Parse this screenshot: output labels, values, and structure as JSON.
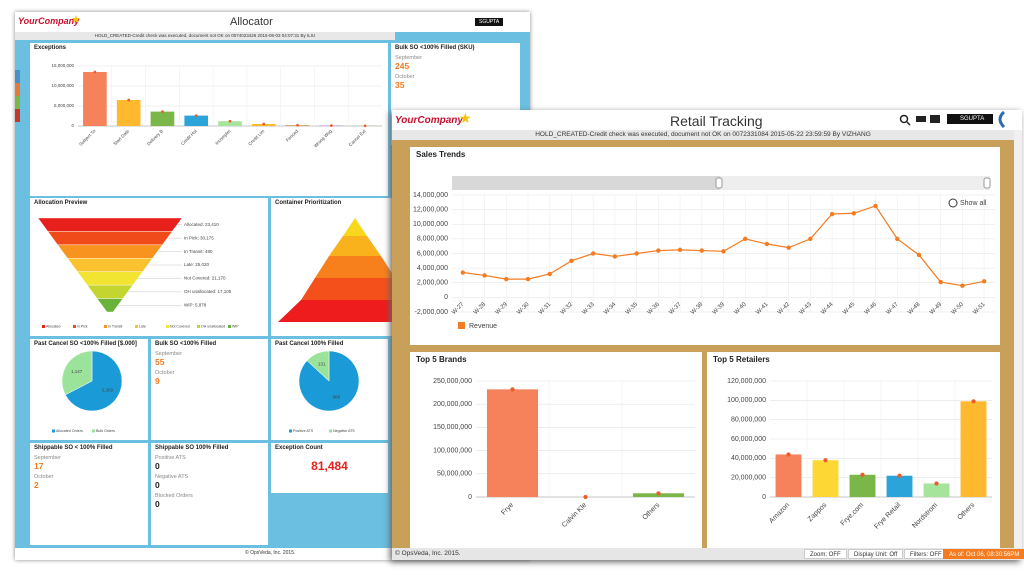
{
  "back": {
    "logo": "YourCompany",
    "title": "Allocator",
    "user": "SGUPTA",
    "message": "HOLD_CREATED-Credit check was executed, document not OK on 0074023426 2015-06-03 04:07:31 By ILIU",
    "exceptions": {
      "title": "Exceptions",
      "categories": [
        "Subject To",
        "Start Date",
        "Delivery B",
        "Credit Hol",
        "Incomplet",
        "Credit Lim",
        "Fenced",
        "Wrong Wsg",
        "Cancel Ext"
      ],
      "values": [
        13500000,
        6500000,
        3600000,
        2600000,
        1200000,
        500000,
        200000,
        100000,
        50000
      ],
      "colors": [
        "#f5825a",
        "#ffb92e",
        "#7ab648",
        "#2ba4d9",
        "#a6e39b",
        "#ffb92e",
        "#c89b5a",
        "#9b7bd1",
        "#7ab648"
      ],
      "ylim": [
        0,
        15000000
      ],
      "yticks": [
        0,
        {
          "value": 5000000,
          "label": "5,000,000"
        },
        {
          "value": 10000000,
          "label": "10,000,000"
        },
        {
          "value": 15000000,
          "label": "15,000,000"
        }
      ]
    },
    "bulk_sku": {
      "title": "Bulk SO <100% Filled (SKU)",
      "rows": [
        {
          "label": "September",
          "value": 245
        },
        {
          "label": "October",
          "value": 35
        }
      ]
    },
    "allocation": {
      "title": "Allocation Preview",
      "segments": [
        {
          "name": "Allocated",
          "value": 23410,
          "label": "Allocated: 23,410",
          "color": "#e8201c"
        },
        {
          "name": "In Pick",
          "value": 30175,
          "label": "In Pick: 30,175",
          "color": "#f04a1a"
        },
        {
          "name": "In Transit",
          "value": 480,
          "label": "In Transit: 480",
          "color": "#f7931e"
        },
        {
          "name": "Late",
          "value": 25020,
          "label": "Late: 25,020",
          "color": "#f9c22e"
        },
        {
          "name": "Not Covered",
          "value": 21170,
          "label": "Not Covered: 21,170",
          "color": "#f2e531"
        },
        {
          "name": "OH unallocated",
          "value": 17105,
          "label": "OH unallocated: 17,105",
          "color": "#c5d52f"
        },
        {
          "name": "WIP",
          "value": 5878,
          "label": "WIP: 5,878",
          "color": "#6ab23a"
        }
      ]
    },
    "container": {
      "title": "Container Prioritization"
    },
    "past_cancel": {
      "title": "Past Cancel SO <100% Filled [$.000]",
      "names": [
        "Allocated Orders",
        "Bulk Orders"
      ],
      "values": [
        2369,
        1147
      ],
      "value_labels": [
        "2,369",
        "1,147"
      ],
      "colors": [
        "#1a9bd7",
        "#9be39b"
      ]
    },
    "bulk_so": {
      "title": "Bulk SO <100% Filled",
      "rows": [
        {
          "label": "September",
          "value": 55
        },
        {
          "label": "October",
          "value": 9
        }
      ]
    },
    "past_cancel_full": {
      "title": "Past Cancel 100% Filled",
      "names": [
        "Positive ATS",
        "Negative ATS"
      ],
      "values": [
        868,
        131
      ],
      "colors": [
        "#1a9bd7",
        "#9be39b"
      ]
    },
    "shippable_partial": {
      "title": "Shippable SO < 100% Filled",
      "rows": [
        {
          "label": "September",
          "value": 17
        },
        {
          "label": "October",
          "value": 2
        }
      ]
    },
    "shippable_full": {
      "title": "Shippable SO 100% Filled",
      "rows": [
        {
          "label": "Positive ATS",
          "value": 0
        },
        {
          "label": "Negative ATS",
          "value": 0
        },
        {
          "label": "Blocked Orders",
          "value": 0
        }
      ]
    },
    "exception_count": {
      "title": "Exception Count",
      "value": 81484,
      "label": "81,484"
    },
    "footer": "© OpsVeda, Inc. 2015."
  },
  "front": {
    "logo": "YourCompany",
    "title": "Retail Tracking",
    "user": "SGUPTA",
    "message": "HOLD_CREATED-Credit check was executed, document not OK on 0072331084 2015-05-22 23:59:59 By VIZHANG",
    "sales_trends": {
      "title": "Sales Trends",
      "series_name": "Revenue",
      "show_all": "Show all",
      "color": "#f47b20",
      "categories": [
        "W-27",
        "W-28",
        "W-29",
        "W-30",
        "W-31",
        "W-32",
        "W-33",
        "W-34",
        "W-35",
        "W-36",
        "W-37",
        "W-38",
        "W-39",
        "W-40",
        "W-41",
        "W-42",
        "W-43",
        "W-44",
        "W-45",
        "W-46",
        "W-47",
        "W-48",
        "W-49",
        "W-50",
        "W-51"
      ],
      "values": [
        3400000,
        3000000,
        2500000,
        2500000,
        3200000,
        5000000,
        6000000,
        5600000,
        6000000,
        6400000,
        6500000,
        6400000,
        6300000,
        8000000,
        7300000,
        6800000,
        8000000,
        11400000,
        11500000,
        12500000,
        8000000,
        5800000,
        2100000,
        1600000,
        2200000
      ],
      "ylim": [
        -2000000,
        14000000
      ],
      "yticks": [
        {
          "value": -2000000,
          "label": "-2,000,000"
        },
        0,
        {
          "value": 2000000,
          "label": "2,000,000"
        },
        {
          "value": 4000000,
          "label": "4,000,000"
        },
        {
          "value": 6000000,
          "label": "6,000,000"
        },
        {
          "value": 8000000,
          "label": "8,000,000"
        },
        {
          "value": 10000000,
          "label": "10,000,000"
        },
        {
          "value": 12000000,
          "label": "12,000,000"
        },
        {
          "value": 14000000,
          "label": "14,000,000"
        }
      ]
    },
    "top_brands": {
      "title": "Top 5 Brands",
      "categories": [
        "Frye",
        "Calvin Kle",
        "Others"
      ],
      "values": [
        232000000,
        0,
        8000000
      ],
      "colors": [
        "#f5825a",
        "#ffb92e",
        "#7ab648"
      ],
      "ylim": [
        0,
        250000000
      ],
      "yticks": [
        0,
        {
          "value": 50000000,
          "label": "50,000,000"
        },
        {
          "value": 100000000,
          "label": "100,000,000"
        },
        {
          "value": 150000000,
          "label": "150,000,000"
        },
        {
          "value": 200000000,
          "label": "200,000,000"
        },
        {
          "value": 250000000,
          "label": "250,000,000"
        }
      ]
    },
    "top_retailers": {
      "title": "Top 5 Retailers",
      "categories": [
        "Amazon",
        "Zappos",
        "Frye.com",
        "Frye Retail",
        "Nordstrom",
        "Others"
      ],
      "values": [
        44000000,
        38000000,
        23000000,
        22000000,
        14000000,
        99000000
      ],
      "colors": [
        "#f5825a",
        "#fdd835",
        "#7ab648",
        "#2ba4d9",
        "#a6e39b",
        "#ffb92e"
      ],
      "ylim": [
        0,
        120000000
      ],
      "yticks": [
        0,
        {
          "value": 20000000,
          "label": "20,000,000"
        },
        {
          "value": 40000000,
          "label": "40,000,000"
        },
        {
          "value": 60000000,
          "label": "60,000,000"
        },
        {
          "value": 80000000,
          "label": "80,000,000"
        },
        {
          "value": 100000000,
          "label": "100,000,000"
        },
        {
          "value": 120000000,
          "label": "120,000,000"
        }
      ]
    },
    "footer": {
      "copyright": "© OpsVeda, Inc. 2015.",
      "zoom": "Zoom: OFF",
      "display_unit": "Display Unit: Off",
      "filters": "Filters: OFF",
      "as_of": "As of: Oct 06, 08:30:56PM"
    }
  }
}
